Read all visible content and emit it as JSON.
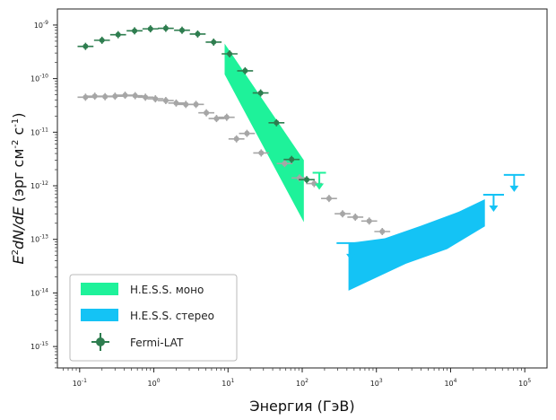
{
  "chart_data": {
    "type": "scatter",
    "xlabel": "Энергия (ГэВ)",
    "ylabel_parts": [
      "E",
      "2",
      "dN/dE",
      " (эрг см",
      "-2",
      " с",
      "-1",
      ")"
    ],
    "x_log": true,
    "y_log": true,
    "xlim_log10": [
      -1.3,
      5.3
    ],
    "ylim_log10": [
      -15.4,
      -8.7
    ],
    "x_ticks": [
      {
        "exp": -1,
        "label": "10",
        "sup": "-1"
      },
      {
        "exp": 0,
        "label": "10",
        "sup": "0"
      },
      {
        "exp": 1,
        "label": "10",
        "sup": "1"
      },
      {
        "exp": 2,
        "label": "10",
        "sup": "2"
      },
      {
        "exp": 3,
        "label": "10",
        "sup": "3"
      },
      {
        "exp": 4,
        "label": "10",
        "sup": "4"
      },
      {
        "exp": 5,
        "label": "10",
        "sup": "5"
      }
    ],
    "y_ticks": [
      {
        "exp": -9,
        "label": "10",
        "sup": "-9"
      },
      {
        "exp": -10,
        "label": "10",
        "sup": "-10"
      },
      {
        "exp": -11,
        "label": "10",
        "sup": "-11"
      },
      {
        "exp": -12,
        "label": "10",
        "sup": "-12"
      },
      {
        "exp": -13,
        "label": "10",
        "sup": "-13"
      },
      {
        "exp": -14,
        "label": "10",
        "sup": "-14"
      },
      {
        "exp": -15,
        "label": "10",
        "sup": "-15"
      }
    ],
    "legend": {
      "placement": "bottom-left",
      "entries": [
        {
          "label": "H.E.S.S. моно",
          "color": "#1ef29a",
          "kind": "band"
        },
        {
          "label": "H.E.S.S. стерео",
          "color": "#14c3f5",
          "kind": "band"
        },
        {
          "label": "Fermi-LAT",
          "color": "#2e7d4f",
          "kind": "point"
        }
      ]
    },
    "series": [
      {
        "name": "Fermi-LAT",
        "color": "#2e7d4f",
        "points": [
          {
            "x": 0.12,
            "y": 4e-10
          },
          {
            "x": 0.2,
            "y": 5.2e-10
          },
          {
            "x": 0.33,
            "y": 6.6e-10
          },
          {
            "x": 0.55,
            "y": 7.8e-10
          },
          {
            "x": 0.9,
            "y": 8.5e-10
          },
          {
            "x": 1.45,
            "y": 8.7e-10
          },
          {
            "x": 2.4,
            "y": 8e-10
          },
          {
            "x": 3.9,
            "y": 6.8e-10
          },
          {
            "x": 6.4,
            "y": 4.8e-10
          },
          {
            "x": 10.5,
            "y": 2.9e-10
          },
          {
            "x": 17,
            "y": 1.4e-10
          },
          {
            "x": 27.5,
            "y": 5.4e-11
          },
          {
            "x": 45,
            "y": 1.5e-11
          },
          {
            "x": 72,
            "y": 3.1e-12
          },
          {
            "x": 115,
            "y": 1.3e-12
          }
        ]
      },
      {
        "name": "",
        "color": "#a6a6a6",
        "points": [
          {
            "x": 0.12,
            "y": 4.5e-11
          },
          {
            "x": 0.16,
            "y": 4.7e-11
          },
          {
            "x": 0.22,
            "y": 4.6e-11
          },
          {
            "x": 0.3,
            "y": 4.7e-11
          },
          {
            "x": 0.41,
            "y": 4.9e-11
          },
          {
            "x": 0.56,
            "y": 4.8e-11
          },
          {
            "x": 0.77,
            "y": 4.5e-11
          },
          {
            "x": 1.05,
            "y": 4.2e-11
          },
          {
            "x": 1.45,
            "y": 3.9e-11
          },
          {
            "x": 2.0,
            "y": 3.5e-11
          },
          {
            "x": 2.7,
            "y": 3.3e-11
          },
          {
            "x": 3.7,
            "y": 3.3e-11
          },
          {
            "x": 5.1,
            "y": 2.3e-11
          },
          {
            "x": 7.0,
            "y": 1.8e-11
          },
          {
            "x": 9.6,
            "y": 1.9e-11
          },
          {
            "x": 13,
            "y": 7.5e-12
          },
          {
            "x": 18,
            "y": 9.5e-12
          },
          {
            "x": 28,
            "y": 4.1e-12
          },
          {
            "x": 58,
            "y": 2.6e-12
          },
          {
            "x": 92,
            "y": 1.4e-12
          },
          {
            "x": 145,
            "y": 1.1e-12
          },
          {
            "x": 230,
            "y": 5.8e-13
          },
          {
            "x": 350,
            "y": 3e-13
          },
          {
            "x": 520,
            "y": 2.6e-13
          },
          {
            "x": 800,
            "y": 2.2e-13
          },
          {
            "x": 1200,
            "y": 1.4e-13
          }
        ]
      }
    ],
    "bands": [
      {
        "name": "H.E.S.S. моно",
        "color": "#1ef29a",
        "polygon": [
          {
            "x": 9,
            "y": 4.5e-10
          },
          {
            "x": 105,
            "y": 3e-12
          },
          {
            "x": 105,
            "y": 2.1e-13
          },
          {
            "x": 9,
            "y": 1.2e-10
          }
        ]
      },
      {
        "name": "H.E.S.S. стерео",
        "color": "#14c3f5",
        "polygon": [
          {
            "x": 420,
            "y": 8.5e-14
          },
          {
            "x": 1300,
            "y": 1.05e-13
          },
          {
            "x": 4000,
            "y": 1.8e-13
          },
          {
            "x": 13000,
            "y": 3.3e-13
          },
          {
            "x": 29000,
            "y": 5.6e-13
          },
          {
            "x": 29000,
            "y": 1.75e-13
          },
          {
            "x": 9000,
            "y": 6.6e-14
          },
          {
            "x": 2500,
            "y": 3.5e-14
          },
          {
            "x": 420,
            "y": 1.1e-14
          }
        ]
      }
    ],
    "upper_limits": [
      {
        "x": 170,
        "y": 1.75e-12,
        "color": "#1ef29a",
        "half_width_dex": 0.09
      },
      {
        "x": 450,
        "y": 8.5e-14,
        "color": "#14c3f5",
        "half_width_dex": 0.19
      },
      {
        "x": 38000,
        "y": 6.8e-13,
        "color": "#14c3f5",
        "half_width_dex": 0.14
      },
      {
        "x": 72000,
        "y": 1.6e-12,
        "color": "#14c3f5",
        "half_width_dex": 0.14
      }
    ]
  }
}
